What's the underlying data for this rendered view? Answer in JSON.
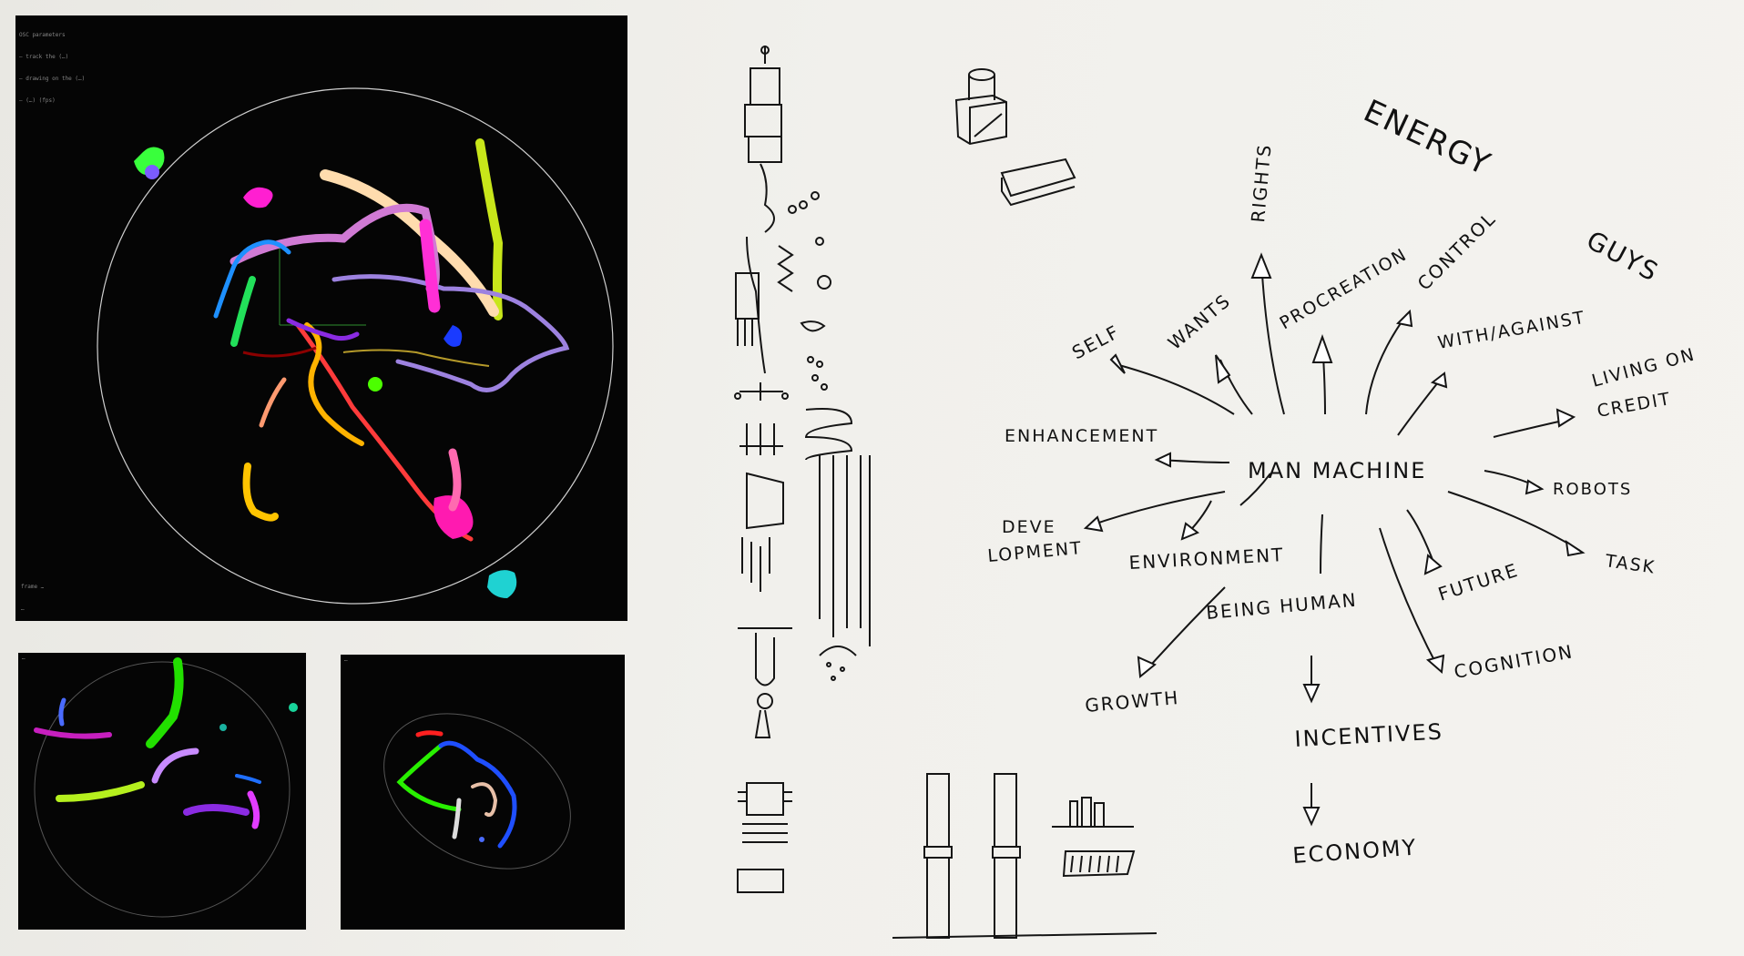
{
  "screens": {
    "main": {
      "header_lines": [
        "OSC parameters",
        "— track the (…)",
        "— drawing on the (…)",
        "— (…) (fps)"
      ],
      "footer_lines": [
        "frame …",
        "…",
        "…",
        "…",
        "…",
        "…"
      ]
    },
    "small_left": {
      "header_lines": [
        "…"
      ]
    },
    "small_right": {
      "header_lines": [
        "…"
      ]
    }
  },
  "sketch": {
    "title_lines": [
      "ENERGY",
      "GUYS"
    ],
    "center_label": "MAN   MACHINE",
    "concepts": [
      "SELF",
      "WANTS",
      "RIGHTS",
      "PROCREATION",
      "CONTROL",
      "WITH/AGAINST",
      "LIVING ON",
      "CREDIT",
      "ENHANCEMENT",
      "ROBOTS",
      "DEVE",
      "LOPMENT",
      "ENVIRONMENT",
      "TASK",
      "FUTURE",
      "BEING HUMAN",
      "COGNITION",
      "GROWTH",
      "INCENTIVES",
      "ECONOMY"
    ]
  },
  "colors": {
    "panel_bg": "#050505",
    "paper": "#f1f0ec",
    "ink": "#111111",
    "trail_colors": [
      "#ff1493",
      "#ffd700",
      "#00ff66",
      "#9370db",
      "#ffe4b5",
      "#1e90ff",
      "#ff3b3b",
      "#00d0d0"
    ]
  }
}
